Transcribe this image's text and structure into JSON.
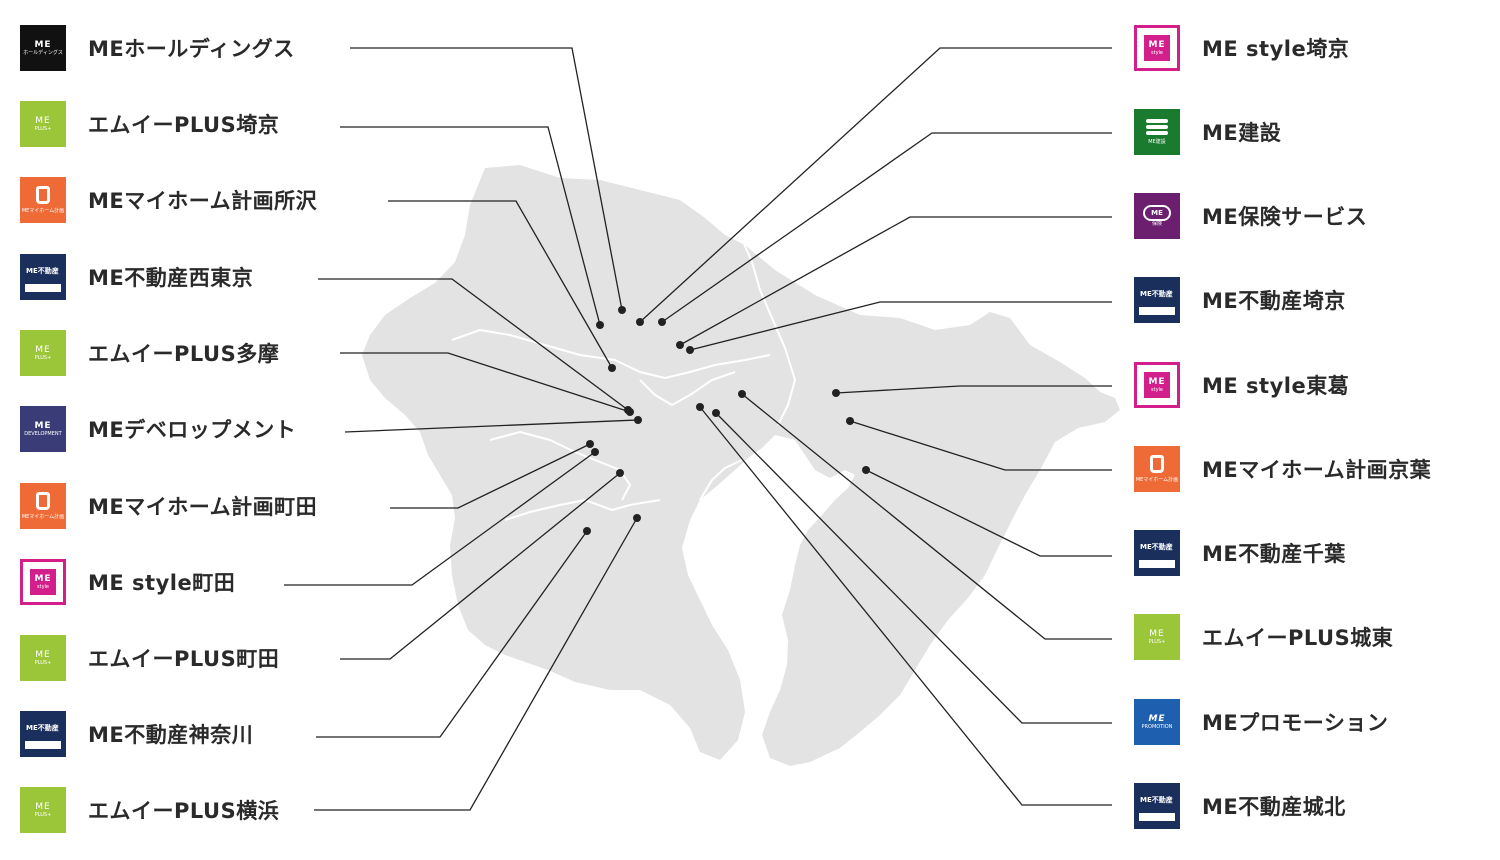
{
  "left": [
    {
      "id": "me-holdings",
      "label": "MEホールディングス",
      "logo": "ME",
      "kind": "holdings",
      "bg": "#111111",
      "sub": "ホールディングス"
    },
    {
      "id": "plus-saikyo",
      "label": "エムイーPLUS埼京",
      "logo": "ME",
      "kind": "plus",
      "bg": "#9cc63a",
      "sub": "PLUS+"
    },
    {
      "id": "myhome-tokorozawa",
      "label": "MEマイホーム計画所沢",
      "logo": "",
      "kind": "myhome",
      "bg": "#ee6a36",
      "sub": "MEマイホーム計画"
    },
    {
      "id": "fudosan-nishitokyo",
      "label": "ME不動産西東京",
      "logo": "ME不動産",
      "kind": "fudosan",
      "bg": "#1a2f5c",
      "sub": ""
    },
    {
      "id": "plus-tama",
      "label": "エムイーPLUS多摩",
      "logo": "ME",
      "kind": "plus",
      "bg": "#9cc63a",
      "sub": "PLUS+"
    },
    {
      "id": "development",
      "label": "MEデベロップメント",
      "logo": "ME",
      "kind": "dev",
      "bg": "#3a3c78",
      "sub": "DEVELOPMENT"
    },
    {
      "id": "myhome-machida",
      "label": "MEマイホーム計画町田",
      "logo": "",
      "kind": "myhome",
      "bg": "#ee6a36",
      "sub": "MEマイホーム計画"
    },
    {
      "id": "style-machida",
      "label": "ME style町田",
      "logo": "ME",
      "kind": "style",
      "bg": "#d21f8c",
      "sub": "style"
    },
    {
      "id": "plus-machida",
      "label": "エムイーPLUS町田",
      "logo": "ME",
      "kind": "plus",
      "bg": "#9cc63a",
      "sub": "PLUS+"
    },
    {
      "id": "fudosan-kanagawa",
      "label": "ME不動産神奈川",
      "logo": "ME不動産",
      "kind": "fudosan",
      "bg": "#1a2f5c",
      "sub": ""
    },
    {
      "id": "plus-yokohama",
      "label": "エムイーPLUS横浜",
      "logo": "ME",
      "kind": "plus",
      "bg": "#9cc63a",
      "sub": "PLUS+"
    }
  ],
  "right": [
    {
      "id": "style-saikyo",
      "label": "ME style埼京",
      "logo": "ME",
      "kind": "style",
      "bg": "#d21f8c",
      "sub": "style"
    },
    {
      "id": "kensetsu",
      "label": "ME建設",
      "logo": "",
      "kind": "kensetsu",
      "bg": "#1a7a2e",
      "sub": "ME建設"
    },
    {
      "id": "hoken",
      "label": "ME保険サービス",
      "logo": "ME",
      "kind": "hoken",
      "bg": "#6b1f6e",
      "sub": "保険"
    },
    {
      "id": "fudosan-saikyo",
      "label": "ME不動産埼京",
      "logo": "ME不動産",
      "kind": "fudosan",
      "bg": "#1a2f5c",
      "sub": ""
    },
    {
      "id": "style-higashikatsushika",
      "label": "ME style東葛",
      "logo": "ME",
      "kind": "style",
      "bg": "#d21f8c",
      "sub": "style"
    },
    {
      "id": "myhome-keiyo",
      "label": "MEマイホーム計画京葉",
      "logo": "",
      "kind": "myhome",
      "bg": "#ee6a36",
      "sub": "MEマイホーム計画"
    },
    {
      "id": "fudosan-chiba",
      "label": "ME不動産千葉",
      "logo": "ME不動産",
      "kind": "fudosan",
      "bg": "#1a2f5c",
      "sub": ""
    },
    {
      "id": "plus-joto",
      "label": "エムイーPLUS城東",
      "logo": "ME",
      "kind": "plus",
      "bg": "#9cc63a",
      "sub": "PLUS+"
    },
    {
      "id": "promotion",
      "label": "MEプロモーション",
      "logo": "ME",
      "kind": "promo",
      "bg": "#1e5fb0",
      "sub": "PROMOTION"
    },
    {
      "id": "fudosan-johoku",
      "label": "ME不動産城北",
      "logo": "ME不動産",
      "kind": "fudosan",
      "bg": "#1a2f5c",
      "sub": ""
    }
  ],
  "colors": {
    "land": "#e3e3e3",
    "border": "#ffffff",
    "line": "#222222",
    "text": "#2a2a2a"
  }
}
